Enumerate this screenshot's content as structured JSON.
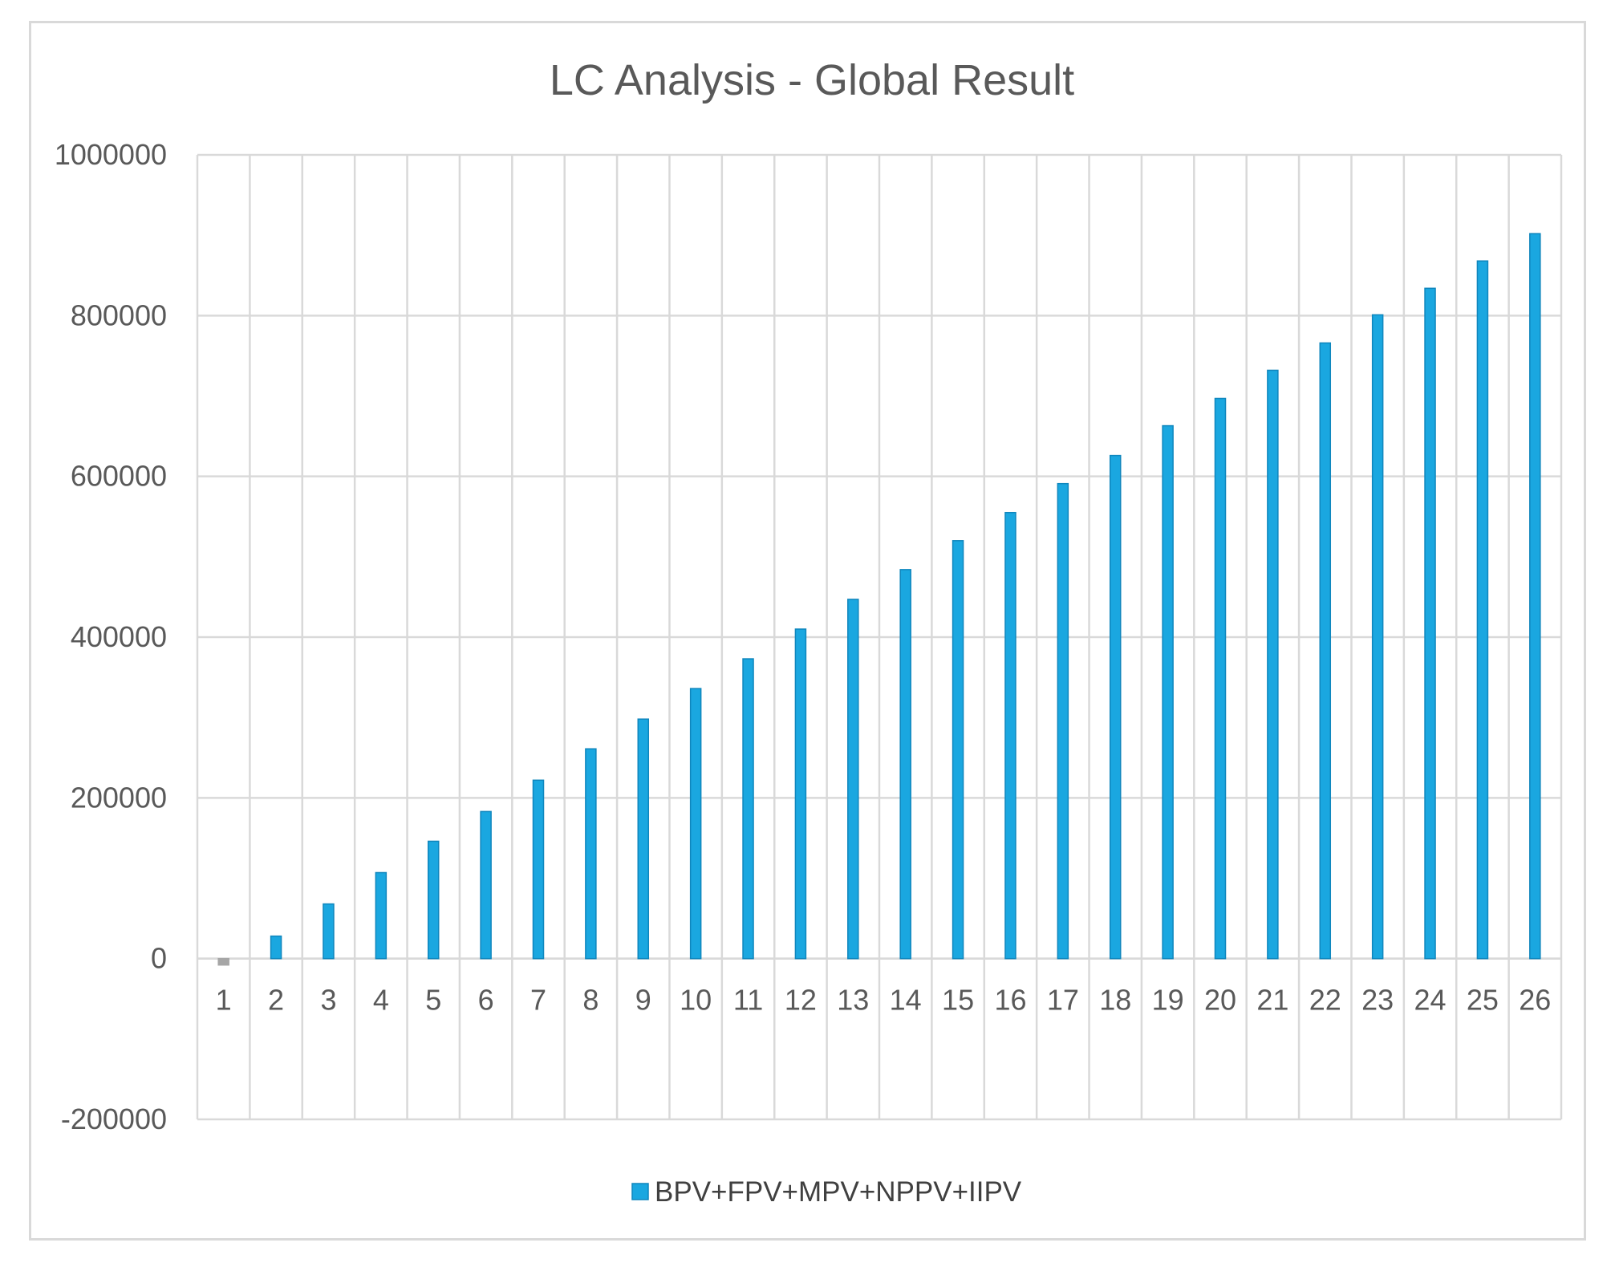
{
  "chart_data": {
    "type": "bar",
    "title": "LC Analysis - Global Result",
    "xlabel": "",
    "ylabel": "",
    "categories": [
      "1",
      "2",
      "3",
      "4",
      "5",
      "6",
      "7",
      "8",
      "9",
      "10",
      "11",
      "12",
      "13",
      "14",
      "15",
      "16",
      "17",
      "18",
      "19",
      "20",
      "21",
      "22",
      "23",
      "24",
      "25",
      "26"
    ],
    "series": [
      {
        "name": "BPV+FPV+MPV+NPPV+IIPV",
        "color": "#1aa7e0",
        "values": [
          -8000,
          28000,
          68000,
          107000,
          146000,
          183000,
          222000,
          261000,
          298000,
          336000,
          373000,
          410000,
          447000,
          484000,
          520000,
          555000,
          591000,
          626000,
          663000,
          697000,
          732000,
          766000,
          801000,
          834000,
          868000,
          902000
        ]
      }
    ],
    "ylim": [
      -200000,
      1000000
    ],
    "yticks": [
      "-200000",
      "0",
      "200000",
      "400000",
      "600000",
      "800000",
      "1000000"
    ],
    "grid": true,
    "legend_position": "bottom",
    "colors": {
      "gridline": "#d9d9d9",
      "bar": "#1aa7e0",
      "bar_edge": "#0f86bd",
      "negative_bar": "#a6a6a6"
    }
  }
}
